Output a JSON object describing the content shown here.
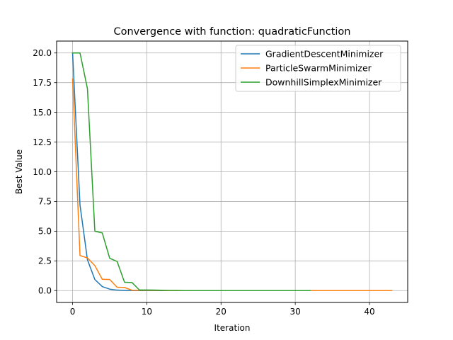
{
  "chart_data": {
    "type": "line",
    "title": "Convergence with function: quadraticFunction",
    "xlabel": "Iteration",
    "ylabel": "Best Value",
    "xlim": [
      -2.15,
      45.15
    ],
    "ylim": [
      -1.0,
      21.0
    ],
    "xticks": [
      0,
      10,
      20,
      30,
      40
    ],
    "xtick_labels": [
      "0",
      "10",
      "20",
      "30",
      "40"
    ],
    "yticks": [
      0.0,
      2.5,
      5.0,
      7.5,
      10.0,
      12.5,
      15.0,
      17.5,
      20.0
    ],
    "ytick_labels": [
      "0.0",
      "2.5",
      "5.0",
      "7.5",
      "10.0",
      "12.5",
      "15.0",
      "17.5",
      "20.0"
    ],
    "grid": true,
    "legend_position": "top-right",
    "series": [
      {
        "name": "GradientDescentMinimizer",
        "color": "#1f77b4",
        "x": [
          0,
          1,
          2,
          3,
          4,
          5,
          6,
          7,
          8,
          9,
          10,
          11,
          12,
          13,
          14,
          15,
          16,
          17,
          18,
          19,
          20,
          21,
          22,
          23
        ],
        "y": [
          20.0,
          7.2,
          2.6,
          0.93,
          0.34,
          0.12,
          0.04,
          0.016,
          0.006,
          0.002,
          0.001,
          0.0,
          0.0,
          0.0,
          0.0,
          0.0,
          0.0,
          0.0,
          0.0,
          0.0,
          0.0,
          0.0,
          0.0,
          0.0
        ]
      },
      {
        "name": "ParticleSwarmMinimizer",
        "color": "#ff7f0e",
        "x": [
          0,
          1,
          2,
          3,
          4,
          5,
          6,
          7,
          8,
          9,
          10,
          11,
          12,
          13,
          14,
          15,
          16,
          17,
          18,
          19,
          20,
          21,
          22,
          23,
          24,
          25,
          26,
          27,
          28,
          29,
          30,
          31,
          32,
          33,
          34,
          35,
          36,
          37,
          38,
          39,
          40,
          41,
          42,
          43
        ],
        "y": [
          17.8,
          2.95,
          2.75,
          2.1,
          0.95,
          0.93,
          0.28,
          0.26,
          0.03,
          0.02,
          0.02,
          0.01,
          0.01,
          0.0,
          0.0,
          0.0,
          0.0,
          0.0,
          0.0,
          0.0,
          0.0,
          0.0,
          0.0,
          0.0,
          0.0,
          0.0,
          0.0,
          0.0,
          0.0,
          0.0,
          0.0,
          0.0,
          0.0,
          0.0,
          0.0,
          0.0,
          0.0,
          0.0,
          0.0,
          0.0,
          0.0,
          0.0,
          0.0,
          0.0
        ]
      },
      {
        "name": "DownhillSimplexMinimizer",
        "color": "#2ca02c",
        "x": [
          0,
          1,
          2,
          3,
          4,
          5,
          6,
          7,
          8,
          9,
          10,
          11,
          12,
          13,
          14,
          15,
          16,
          17,
          18,
          19,
          20,
          21,
          22,
          23,
          24,
          25,
          26,
          27,
          28,
          29,
          30,
          31,
          32
        ],
        "y": [
          20.0,
          20.0,
          17.0,
          5.0,
          4.85,
          2.72,
          2.45,
          0.7,
          0.68,
          0.05,
          0.05,
          0.04,
          0.03,
          0.01,
          0.01,
          0.0,
          0.0,
          0.0,
          0.0,
          0.0,
          0.0,
          0.0,
          0.0,
          0.0,
          0.0,
          0.0,
          0.0,
          0.0,
          0.0,
          0.0,
          0.0,
          0.0,
          0.0
        ]
      }
    ]
  }
}
